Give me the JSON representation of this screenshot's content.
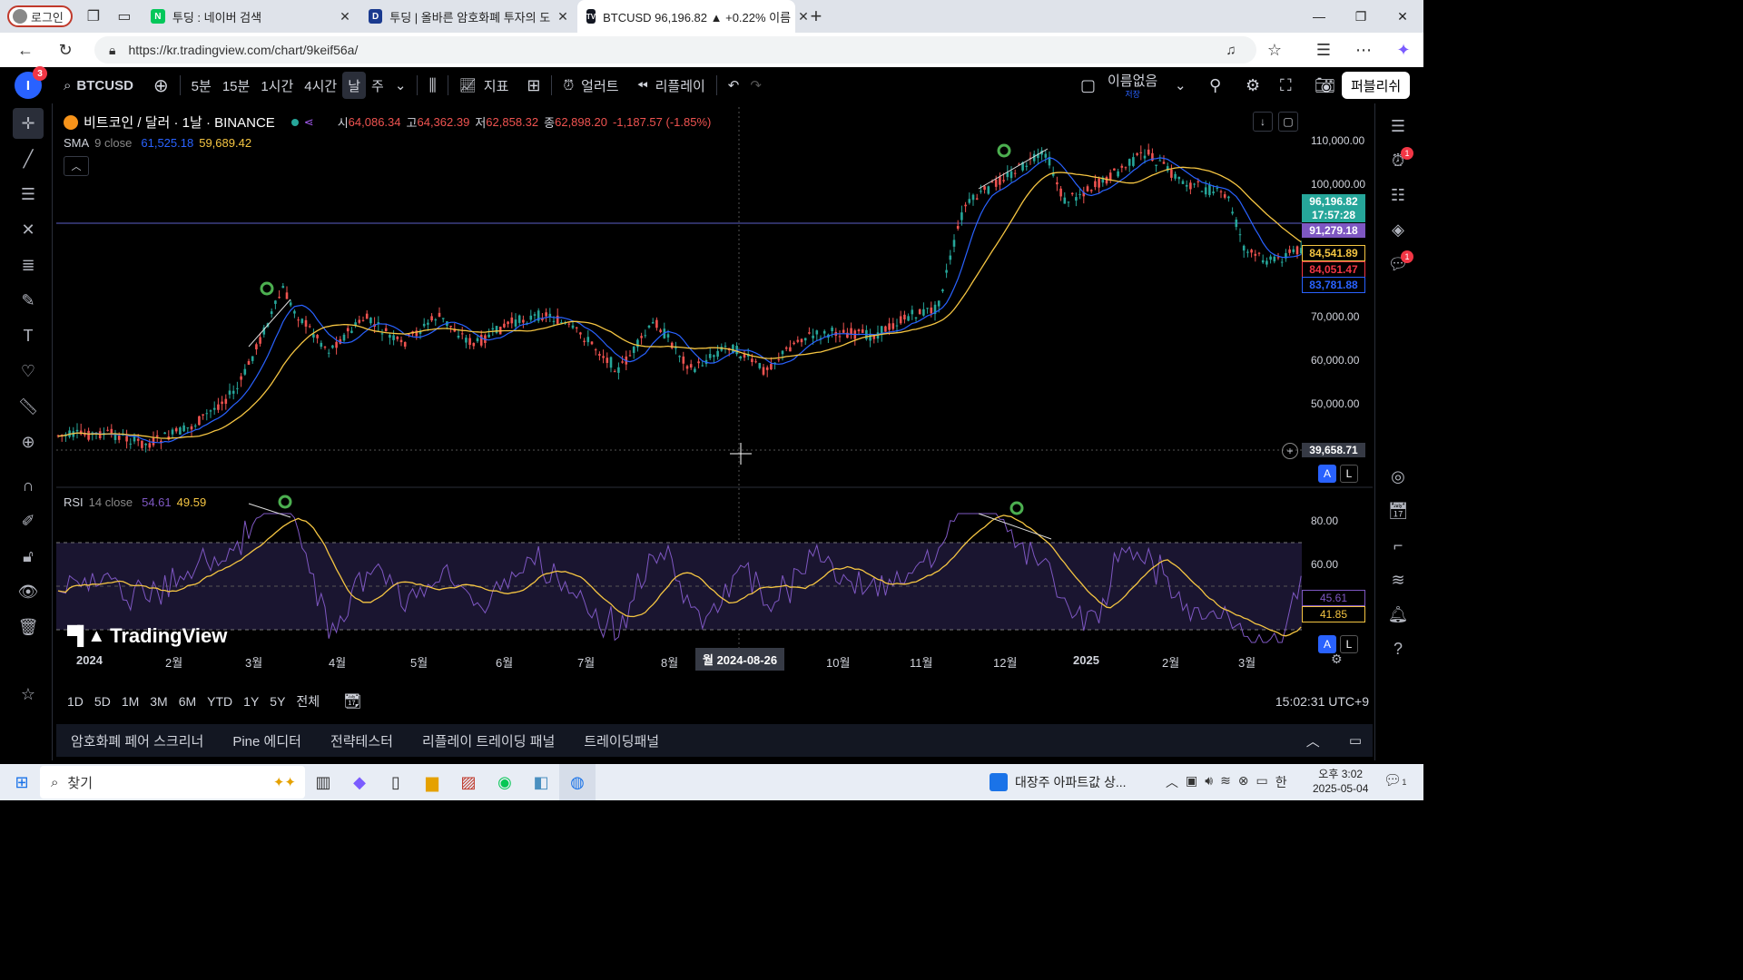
{
  "browser": {
    "login_label": "로그인",
    "tabs": [
      {
        "title": "투딩 : 네이버 검색",
        "fav": "N",
        "color": "#03c75a"
      },
      {
        "title": "투딩 | 올바른 암호화폐 투자의 도",
        "fav": "D",
        "color": "#1a3a8f"
      },
      {
        "title": "BTCUSD 96,196.82 ▲ +0.22% 이름",
        "fav": "TV",
        "color": "#131722"
      }
    ],
    "url": "https://kr.tradingview.com/chart/9keif56a/"
  },
  "toolbar": {
    "avatar_letter": "I",
    "avatar_badge": "3",
    "symbol": "BTCUSD",
    "intervals": [
      "5분",
      "15분",
      "1시간",
      "4시간",
      "날",
      "주"
    ],
    "selected_interval": "날",
    "indicators_label": "지표",
    "alert_label": "얼러트",
    "replay_label": "리플레이",
    "layout_name": "이름없음",
    "layout_sub": "저장",
    "publish_label": "퍼블리쉬"
  },
  "chart": {
    "title": "비트코인 / 달러 · 1날 · BINANCE",
    "ohlc": {
      "o_label": "시",
      "o": "64,086.34",
      "h_label": "고",
      "h": "64,362.39",
      "l_label": "저",
      "l": "62,858.32",
      "c_label": "종",
      "c": "62,898.20",
      "chg": "-1,187.57 (-1.85%)"
    },
    "sma_label": "SMA",
    "sma_params": "9 close",
    "sma_v1": "61,525.18",
    "sma_v2": "59,689.42",
    "rsi_label": "RSI",
    "rsi_params": "14 close",
    "rsi_v1": "54.61",
    "rsi_v2": "49.59",
    "watermark": "TradingView",
    "price_axis": [
      "110,000.00",
      "100,000.00",
      "70,000.00",
      "60,000.00",
      "50,000.00"
    ],
    "price_tags": [
      {
        "text": "96,196.82",
        "bg": "#26a69a",
        "fg": "#fff"
      },
      {
        "text": "17:57:28",
        "bg": "#26a69a",
        "fg": "#fff"
      },
      {
        "text": "91,279.18",
        "bg": "#7e57c2",
        "fg": "#fff"
      },
      {
        "text": "84,541.89",
        "bg": "#000",
        "fg": "#f5c542"
      },
      {
        "text": "84,051.47",
        "bg": "#000",
        "fg": "#f23645"
      },
      {
        "text": "83,781.88",
        "bg": "#000",
        "fg": "#2962ff"
      }
    ],
    "crosshair_price": "39,658.71",
    "rsi_axis": [
      "80.00",
      "60.00"
    ],
    "rsi_tags": [
      {
        "text": "45.61",
        "fg": "#7e57c2"
      },
      {
        "text": "41.85",
        "fg": "#f5c542"
      }
    ],
    "x_axis": [
      "2024",
      "2월",
      "3월",
      "4월",
      "5월",
      "6월",
      "7월",
      "8월",
      "10월",
      "11월",
      "12월",
      "2025",
      "2월",
      "3월"
    ],
    "crosshair_date": "월 2024-08-26",
    "auto_label": "A",
    "log_label": "L"
  },
  "ranges": [
    "1D",
    "5D",
    "1M",
    "3M",
    "6M",
    "YTD",
    "1Y",
    "5Y",
    "전체"
  ],
  "clock": "15:02:31 UTC+9",
  "panels": [
    "암호화폐 페어 스크리너",
    "Pine 에디터",
    "전략테스터",
    "리플레이 트레이딩 패널",
    "트레이딩패널"
  ],
  "taskbar": {
    "search_label": "찾기",
    "news": "대장주 아파트값 상...",
    "ime": "한",
    "time": "오후 3:02",
    "date": "2025-05-04",
    "notif": "1"
  },
  "colors": {
    "up": "#26a69a",
    "down": "#ef5350",
    "sma": "#f5c542",
    "ma2": "#2962ff",
    "rsi": "#7e57c2"
  }
}
